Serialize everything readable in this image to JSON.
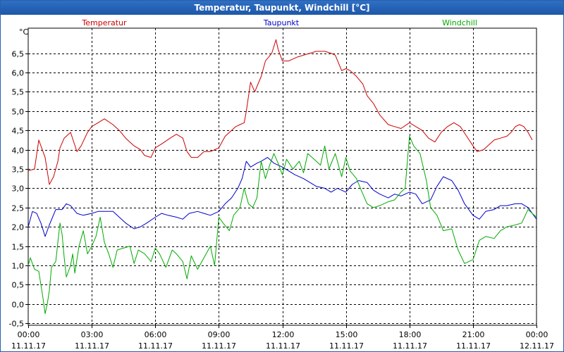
{
  "window": {
    "title": "Temperatur, Taupunkt, Windchill [°C]"
  },
  "chart_data": {
    "type": "line",
    "title": "Temperatur, Taupunkt, Windchill [°C]",
    "ylabel": "°C",
    "ylim": [
      -0.55,
      7.15
    ],
    "xlim": [
      0,
      24
    ],
    "yticks": [
      -0.5,
      0.0,
      0.5,
      1.0,
      1.5,
      2.0,
      2.5,
      3.0,
      3.5,
      4.0,
      4.5,
      5.0,
      5.5,
      6.0,
      6.5
    ],
    "ytick_labels": [
      "-0,5",
      "0,0",
      "0,5",
      "1,0",
      "1,5",
      "2,0",
      "2,5",
      "3,0",
      "3,5",
      "4,0",
      "4,5",
      "5,0",
      "5,5",
      "6,0",
      "6,5"
    ],
    "xticks": [
      {
        "time": "00:00",
        "date": "11.11.17"
      },
      {
        "time": "03:00",
        "date": "11.11.17"
      },
      {
        "time": "06:00",
        "date": "11.11.17"
      },
      {
        "time": "09:00",
        "date": "11.11.17"
      },
      {
        "time": "12:00",
        "date": "11.11.17"
      },
      {
        "time": "15:00",
        "date": "11.11.17"
      },
      {
        "time": "18:00",
        "date": "11.11.17"
      },
      {
        "time": "21:00",
        "date": "11.11.17"
      },
      {
        "time": "00:00",
        "date": "12.11.17"
      }
    ],
    "grid": true,
    "series": [
      {
        "name": "Temperatur",
        "color": "#cc0000",
        "x": [
          0,
          0.3,
          0.5,
          0.8,
          1.0,
          1.2,
          1.4,
          1.5,
          1.7,
          2.0,
          2.3,
          2.5,
          2.8,
          3.0,
          3.3,
          3.6,
          4.0,
          4.3,
          4.6,
          5.0,
          5.3,
          5.5,
          5.8,
          6.0,
          6.3,
          6.7,
          7.0,
          7.3,
          7.5,
          7.7,
          8.0,
          8.3,
          8.6,
          9.0,
          9.3,
          9.5,
          9.8,
          10.0,
          10.2,
          10.3,
          10.5,
          10.7,
          11.0,
          11.2,
          11.5,
          11.7,
          11.8,
          12.0,
          12.3,
          12.7,
          13.0,
          13.3,
          13.6,
          14.0,
          14.3,
          14.5,
          14.8,
          15.0,
          15.2,
          15.5,
          15.8,
          16.0,
          16.3,
          16.6,
          17.0,
          17.3,
          17.6,
          18.0,
          18.3,
          18.6,
          18.9,
          19.2,
          19.5,
          19.8,
          20.1,
          20.4,
          20.7,
          21.0,
          21.2,
          21.5,
          21.8,
          22.0,
          22.3,
          22.6,
          22.8,
          23.0,
          23.2,
          23.4,
          23.6,
          23.8
        ],
        "y": [
          3.45,
          3.5,
          4.25,
          3.8,
          3.1,
          3.3,
          3.7,
          4.05,
          4.3,
          4.45,
          3.95,
          4.1,
          4.45,
          4.6,
          4.7,
          4.8,
          4.65,
          4.5,
          4.3,
          4.1,
          4.0,
          3.85,
          3.8,
          4.05,
          4.15,
          4.3,
          4.4,
          4.3,
          3.95,
          3.8,
          3.8,
          3.95,
          3.95,
          4.05,
          4.35,
          4.45,
          4.6,
          4.65,
          4.7,
          5.0,
          5.75,
          5.5,
          5.9,
          6.3,
          6.5,
          6.85,
          6.6,
          6.3,
          6.3,
          6.4,
          6.45,
          6.5,
          6.55,
          6.55,
          6.5,
          6.45,
          6.05,
          6.1,
          6.05,
          5.9,
          5.7,
          5.4,
          5.2,
          4.9,
          4.65,
          4.6,
          4.55,
          4.7,
          4.6,
          4.5,
          4.3,
          4.2,
          4.45,
          4.6,
          4.7,
          4.6,
          4.35,
          4.1,
          3.95,
          4.0,
          4.15,
          4.25,
          4.3,
          4.35,
          4.45,
          4.6,
          4.65,
          4.6,
          4.45,
          4.25
        ]
      },
      {
        "name": "Taupunkt",
        "color": "#0000cc",
        "x": [
          0,
          0.2,
          0.4,
          0.6,
          0.8,
          1.0,
          1.3,
          1.6,
          1.8,
          2.0,
          2.3,
          2.6,
          3.0,
          3.3,
          3.6,
          4.0,
          4.3,
          4.6,
          5.0,
          5.3,
          5.6,
          6.0,
          6.3,
          6.6,
          7.0,
          7.3,
          7.6,
          8.0,
          8.3,
          8.6,
          9.0,
          9.3,
          9.6,
          9.9,
          10.1,
          10.3,
          10.5,
          10.8,
          11.0,
          11.3,
          11.6,
          12.0,
          12.3,
          12.6,
          13.0,
          13.3,
          13.6,
          14.0,
          14.3,
          14.6,
          15.0,
          15.3,
          15.6,
          16.0,
          16.3,
          16.6,
          17.0,
          17.3,
          17.6,
          18.0,
          18.3,
          18.6,
          19.0,
          19.3,
          19.6,
          20.0,
          20.3,
          20.6,
          21.0,
          21.3,
          21.6,
          22.0,
          22.3,
          22.6,
          23.0,
          23.3,
          23.6,
          23.8,
          24.0
        ],
        "y": [
          2.0,
          2.4,
          2.35,
          2.1,
          1.75,
          2.05,
          2.45,
          2.45,
          2.6,
          2.55,
          2.35,
          2.3,
          2.35,
          2.4,
          2.4,
          2.4,
          2.25,
          2.1,
          1.95,
          2.0,
          2.1,
          2.25,
          2.35,
          2.3,
          2.25,
          2.2,
          2.35,
          2.4,
          2.35,
          2.3,
          2.4,
          2.6,
          2.75,
          3.0,
          3.25,
          3.7,
          3.55,
          3.65,
          3.7,
          3.8,
          3.65,
          3.55,
          3.45,
          3.35,
          3.25,
          3.15,
          3.05,
          3.0,
          2.9,
          3.0,
          2.9,
          3.1,
          3.2,
          3.15,
          2.95,
          2.85,
          2.75,
          2.85,
          2.8,
          2.9,
          2.85,
          2.6,
          2.7,
          3.05,
          3.3,
          3.2,
          2.95,
          2.6,
          2.3,
          2.2,
          2.4,
          2.45,
          2.55,
          2.55,
          2.6,
          2.6,
          2.5,
          2.35,
          2.2
        ]
      },
      {
        "name": "Windchill",
        "color": "#00aa00",
        "x": [
          0,
          0.1,
          0.3,
          0.5,
          0.7,
          0.8,
          0.9,
          1.0,
          1.1,
          1.3,
          1.5,
          1.6,
          1.7,
          1.8,
          2.0,
          2.1,
          2.2,
          2.4,
          2.6,
          2.8,
          3.0,
          3.2,
          3.4,
          3.6,
          3.8,
          4.0,
          4.2,
          4.5,
          4.8,
          5.0,
          5.2,
          5.5,
          5.8,
          6.0,
          6.2,
          6.5,
          6.8,
          7.0,
          7.3,
          7.5,
          7.7,
          8.0,
          8.3,
          8.6,
          8.8,
          9.0,
          9.2,
          9.5,
          9.7,
          10.0,
          10.2,
          10.4,
          10.6,
          10.8,
          11.0,
          11.2,
          11.4,
          11.6,
          11.8,
          12.0,
          12.2,
          12.5,
          12.8,
          13.0,
          13.2,
          13.5,
          13.8,
          14.0,
          14.2,
          14.5,
          14.8,
          15.0,
          15.2,
          15.5,
          15.8,
          16.0,
          16.3,
          16.6,
          17.0,
          17.3,
          17.6,
          17.8,
          18.0,
          18.2,
          18.5,
          18.8,
          19.0,
          19.3,
          19.6,
          20.0,
          20.3,
          20.6,
          21.0,
          21.3,
          21.6,
          22.0,
          22.3,
          22.6,
          23.0,
          23.3,
          23.6,
          23.8,
          24.0
        ],
        "y": [
          1.0,
          1.2,
          0.9,
          0.85,
          0.15,
          -0.25,
          0.0,
          0.35,
          0.95,
          1.1,
          2.1,
          1.8,
          1.2,
          0.7,
          1.0,
          1.3,
          0.8,
          1.5,
          1.9,
          1.3,
          1.5,
          1.75,
          2.25,
          1.6,
          1.3,
          0.95,
          1.4,
          1.45,
          1.5,
          1.05,
          1.4,
          1.3,
          1.1,
          1.45,
          1.3,
          0.95,
          1.4,
          1.3,
          1.1,
          0.65,
          1.25,
          0.9,
          1.2,
          1.5,
          1.0,
          2.25,
          2.1,
          1.9,
          2.3,
          2.5,
          3.0,
          2.6,
          2.5,
          2.75,
          3.7,
          3.25,
          3.6,
          3.9,
          3.65,
          3.35,
          3.75,
          3.5,
          3.7,
          3.4,
          3.9,
          3.75,
          3.6,
          4.1,
          3.5,
          3.9,
          3.3,
          3.8,
          3.45,
          3.25,
          2.85,
          2.6,
          2.5,
          2.55,
          2.65,
          2.7,
          2.9,
          3.0,
          4.35,
          4.1,
          3.9,
          3.2,
          2.5,
          2.3,
          1.9,
          1.95,
          1.4,
          1.05,
          1.15,
          1.65,
          1.75,
          1.7,
          1.9,
          2.0,
          2.05,
          2.1,
          2.45,
          2.35,
          2.25
        ]
      }
    ]
  }
}
